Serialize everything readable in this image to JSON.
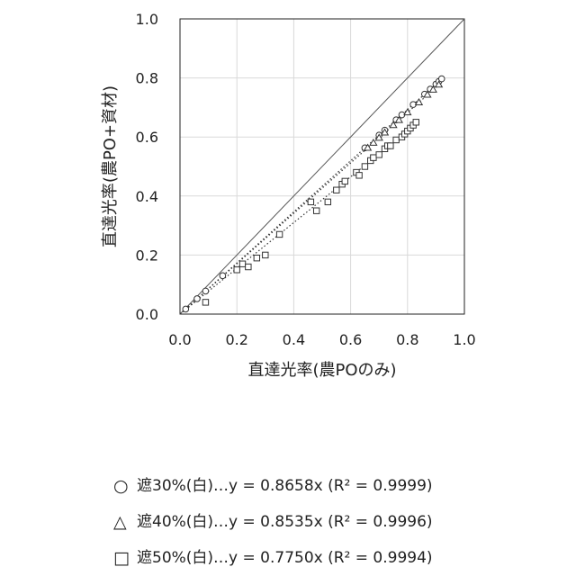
{
  "chart_data": {
    "type": "scatter",
    "xlabel": "直達光率(農POのみ)",
    "ylabel": "直達光率(農PO+資材)",
    "xlim": [
      0,
      1
    ],
    "ylim": [
      0,
      1
    ],
    "x_ticks": [
      "0.0",
      "0.2",
      "0.4",
      "0.6",
      "0.8",
      "1.0"
    ],
    "y_ticks": [
      "0.0",
      "0.2",
      "0.4",
      "0.6",
      "0.8",
      "1.0"
    ],
    "grid": true,
    "reference_line": {
      "slope": 1
    },
    "series": [
      {
        "name": "遮30%(白)",
        "marker": "circle",
        "fit_slope": 0.8658,
        "r2": "0.9999",
        "points": [
          [
            0.02,
            0.017
          ],
          [
            0.06,
            0.052
          ],
          [
            0.09,
            0.078
          ],
          [
            0.15,
            0.13
          ],
          [
            0.65,
            0.563
          ],
          [
            0.7,
            0.606
          ],
          [
            0.72,
            0.623
          ],
          [
            0.76,
            0.658
          ],
          [
            0.78,
            0.675
          ],
          [
            0.82,
            0.71
          ],
          [
            0.86,
            0.745
          ],
          [
            0.88,
            0.762
          ],
          [
            0.9,
            0.779
          ],
          [
            0.91,
            0.788
          ],
          [
            0.92,
            0.797
          ]
        ]
      },
      {
        "name": "遮40%(白)",
        "marker": "triangle",
        "fit_slope": 0.8535,
        "r2": "0.9996",
        "points": [
          [
            0.66,
            0.563
          ],
          [
            0.68,
            0.58
          ],
          [
            0.7,
            0.597
          ],
          [
            0.72,
            0.615
          ],
          [
            0.75,
            0.64
          ],
          [
            0.77,
            0.657
          ],
          [
            0.8,
            0.683
          ],
          [
            0.84,
            0.717
          ],
          [
            0.87,
            0.743
          ],
          [
            0.89,
            0.76
          ],
          [
            0.91,
            0.777
          ]
        ]
      },
      {
        "name": "遮50%(白)",
        "marker": "square",
        "fit_slope": 0.775,
        "r2": "0.9994",
        "points": [
          [
            0.09,
            0.04
          ],
          [
            0.2,
            0.15
          ],
          [
            0.22,
            0.17
          ],
          [
            0.24,
            0.16
          ],
          [
            0.27,
            0.19
          ],
          [
            0.3,
            0.2
          ],
          [
            0.35,
            0.27
          ],
          [
            0.46,
            0.38
          ],
          [
            0.48,
            0.35
          ],
          [
            0.52,
            0.38
          ],
          [
            0.55,
            0.42
          ],
          [
            0.57,
            0.44
          ],
          [
            0.58,
            0.45
          ],
          [
            0.62,
            0.48
          ],
          [
            0.63,
            0.47
          ],
          [
            0.65,
            0.5
          ],
          [
            0.67,
            0.52
          ],
          [
            0.68,
            0.53
          ],
          [
            0.7,
            0.54
          ],
          [
            0.72,
            0.56
          ],
          [
            0.73,
            0.57
          ],
          [
            0.74,
            0.57
          ],
          [
            0.76,
            0.59
          ],
          [
            0.78,
            0.6
          ],
          [
            0.79,
            0.61
          ],
          [
            0.8,
            0.62
          ],
          [
            0.81,
            0.63
          ],
          [
            0.82,
            0.64
          ],
          [
            0.83,
            0.65
          ]
        ]
      }
    ]
  },
  "legend": {
    "items": [
      {
        "symbol": "○",
        "label": "遮30%(白)…y = 0.8658x (R² = 0.9999)"
      },
      {
        "symbol": "△",
        "label": "遮40%(白)…y = 0.8535x (R² = 0.9996)"
      },
      {
        "symbol": "□",
        "label": "遮50%(白)…y = 0.7750x (R² = 0.9994)"
      }
    ]
  }
}
